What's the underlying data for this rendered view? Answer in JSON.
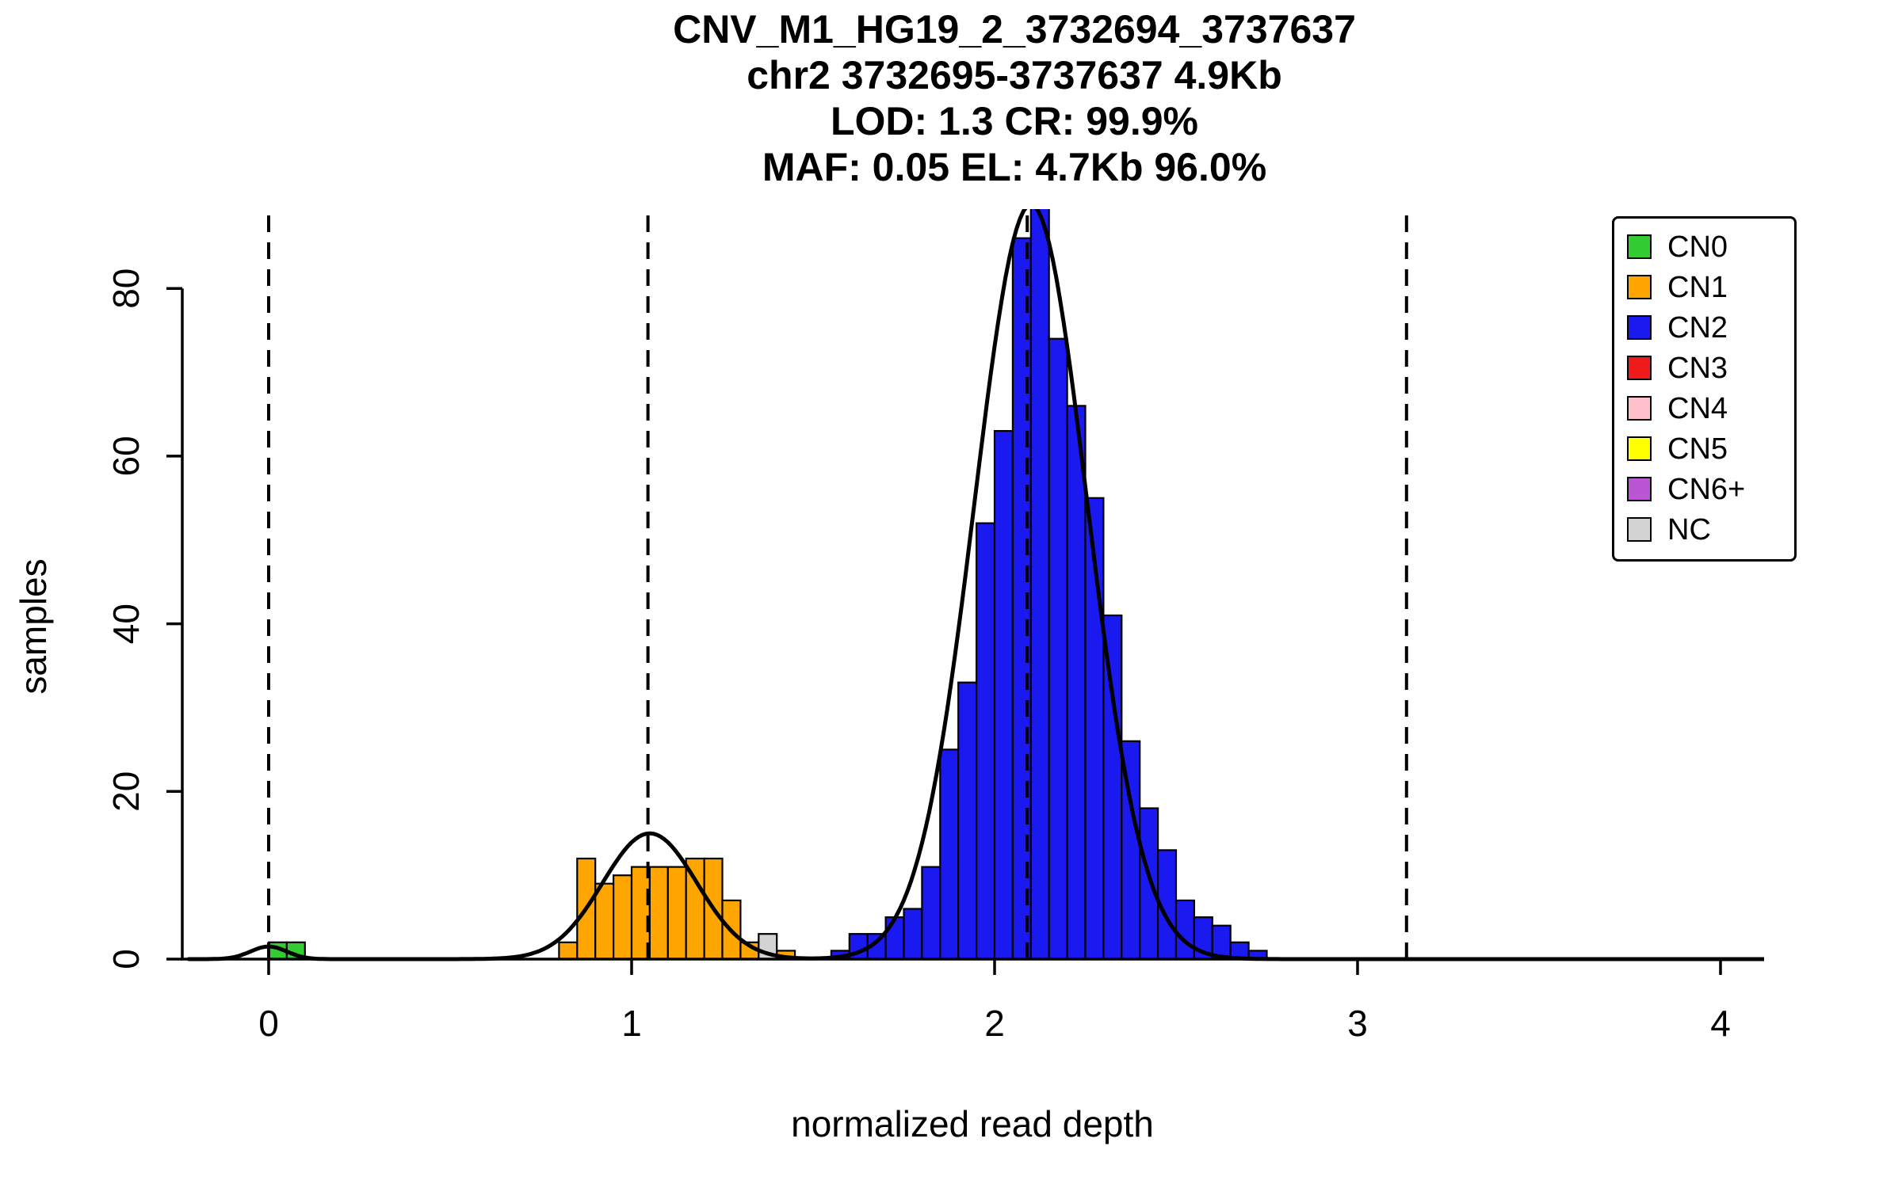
{
  "title": {
    "line1": "CNV_M1_HG19_2_3732694_3737637",
    "line2": "chr2 3732695-3737637 4.9Kb",
    "line3": "LOD: 1.3 CR: 99.9%",
    "line4": "MAF: 0.05 EL: 4.7Kb 96.0%"
  },
  "axes": {
    "x_label": "normalized read depth",
    "y_label": "samples"
  },
  "legend": {
    "items": [
      {
        "label": "CN0",
        "color": "#33CC33"
      },
      {
        "label": "CN1",
        "color": "#FFA500"
      },
      {
        "label": "CN2",
        "color": "#1A1AF0"
      },
      {
        "label": "CN3",
        "color": "#F01A1A"
      },
      {
        "label": "CN4",
        "color": "#FFC0CB"
      },
      {
        "label": "CN5",
        "color": "#FFFF00"
      },
      {
        "label": "CN6+",
        "color": "#BA55D3"
      },
      {
        "label": "NC",
        "color": "#D3D3D3"
      }
    ]
  },
  "chart_data": {
    "type": "bar",
    "subtype": "histogram-with-gaussian-fit",
    "title": "CNV_M1_HG19_2_3732694_3737637",
    "subtitle_lines": [
      "chr2 3732695-3737637 4.9Kb",
      "LOD: 1.3 CR: 99.9%",
      "MAF: 0.05 EL: 4.7Kb 96.0%"
    ],
    "xlabel": "normalized read depth",
    "ylabel": "samples",
    "xlim": [
      -0.2,
      4.15
    ],
    "ylim": [
      0,
      89.5
    ],
    "x_ticks": [
      0,
      1,
      2,
      3,
      4
    ],
    "y_ticks": [
      0,
      20,
      40,
      60,
      80
    ],
    "grid": false,
    "legend_position": "top-right",
    "bin_width": 0.05,
    "series": [
      {
        "name": "CN0",
        "color": "#33CC33",
        "bins": [
          [
            0.0,
            2
          ],
          [
            0.05,
            2
          ]
        ]
      },
      {
        "name": "CN1",
        "color": "#FFA500",
        "bins": [
          [
            0.8,
            2
          ],
          [
            0.85,
            12
          ],
          [
            0.9,
            9
          ],
          [
            0.95,
            10
          ],
          [
            1.0,
            11
          ],
          [
            1.05,
            11
          ],
          [
            1.1,
            11
          ],
          [
            1.15,
            12
          ],
          [
            1.2,
            12
          ],
          [
            1.25,
            7
          ],
          [
            1.3,
            2
          ],
          [
            1.4,
            1
          ]
        ]
      },
      {
        "name": "NC",
        "color": "#D3D3D3",
        "bins": [
          [
            1.35,
            3
          ]
        ]
      },
      {
        "name": "CN2",
        "color": "#1A1AF0",
        "bins": [
          [
            1.55,
            1
          ],
          [
            1.6,
            3
          ],
          [
            1.65,
            3
          ],
          [
            1.7,
            5
          ],
          [
            1.75,
            6
          ],
          [
            1.8,
            11
          ],
          [
            1.85,
            25
          ],
          [
            1.9,
            33
          ],
          [
            1.95,
            52
          ],
          [
            2.0,
            63
          ],
          [
            2.05,
            86
          ],
          [
            2.1,
            91
          ],
          [
            2.15,
            74
          ],
          [
            2.2,
            66
          ],
          [
            2.25,
            55
          ],
          [
            2.3,
            41
          ],
          [
            2.35,
            26
          ],
          [
            2.4,
            18
          ],
          [
            2.45,
            13
          ],
          [
            2.5,
            7
          ],
          [
            2.55,
            5
          ],
          [
            2.6,
            4
          ],
          [
            2.65,
            2
          ],
          [
            2.7,
            1
          ]
        ]
      }
    ],
    "cluster_mean_lines_x": [
      0,
      1.045,
      2.09,
      3.135
    ],
    "fit_curve_components": [
      {
        "mean": 0.0,
        "sd": 0.05,
        "height": 1.5
      },
      {
        "mean": 1.05,
        "sd": 0.13,
        "height": 15
      },
      {
        "mean": 2.1,
        "sd": 0.155,
        "height": 90
      }
    ]
  }
}
